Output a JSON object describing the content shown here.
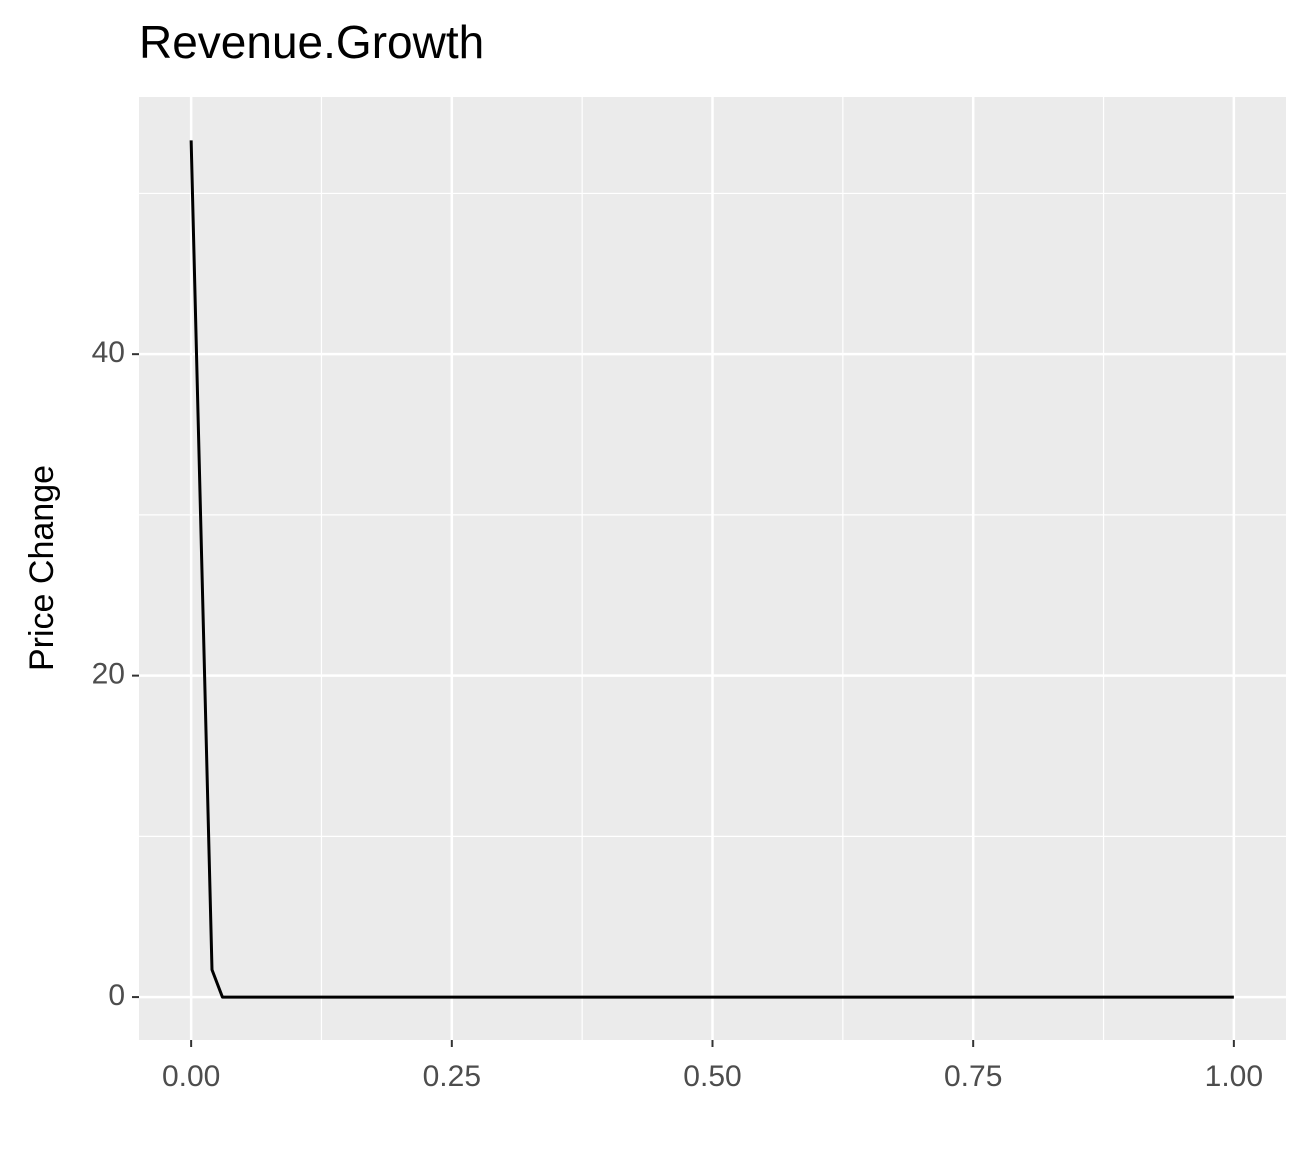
{
  "chart_data": {
    "type": "line",
    "title": "Revenue.Growth",
    "y_label": "Price Change",
    "x": [
      0,
      0.02,
      0.03,
      1.0
    ],
    "values": [
      53.3,
      1.7,
      0,
      0
    ],
    "color": "#000000",
    "xlim": [
      -0.05,
      1.05
    ],
    "ylim": [
      -2.67,
      56.0
    ],
    "xticks": [
      {
        "value": 0,
        "label": "0.00"
      },
      {
        "value": 0.25,
        "label": "0.25"
      },
      {
        "value": 0.5,
        "label": "0.50"
      },
      {
        "value": 0.75,
        "label": "0.75"
      },
      {
        "value": 1,
        "label": "1.00"
      }
    ],
    "yticks": [
      0,
      20,
      40
    ],
    "x_minor_ticks": [
      0.125,
      0.375,
      0.625,
      0.875
    ],
    "y_minor_ticks": [
      10,
      30,
      50
    ],
    "grid": true
  }
}
